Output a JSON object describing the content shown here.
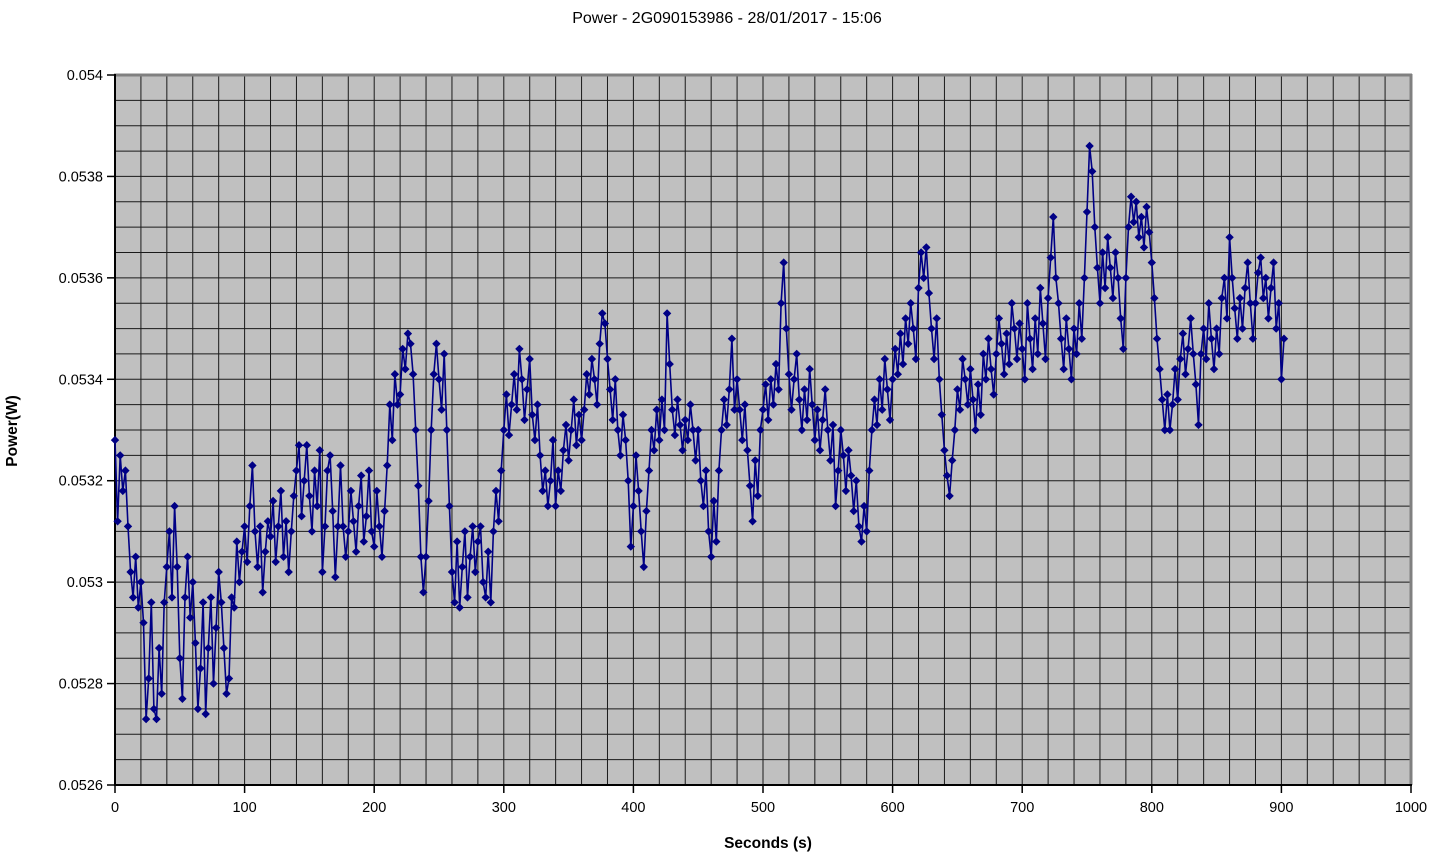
{
  "window": {
    "title": "Power - 2G090153986 - 28/01/2017 - 15:06"
  },
  "colors": {
    "page_bg": "#ffffff",
    "plot_bg": "#c0c0c0",
    "grid": "#1a1a1a",
    "border": "#808080",
    "axis": "#000000",
    "text": "#000000",
    "series": "#000085"
  },
  "chart_data": {
    "type": "line",
    "title": "Power - 2G090153986 - 28/01/2017 - 15:06",
    "xlabel": "Seconds (s)",
    "ylabel": "Power(W)",
    "xlim": [
      0,
      1000
    ],
    "ylim": [
      0.0526,
      0.054
    ],
    "grid": "minor-both",
    "legend": "none",
    "marker": "diamond",
    "x_minor_step": 20,
    "y_minor_step": 5e-05,
    "x_tick_values": [
      0,
      100,
      200,
      300,
      400,
      500,
      600,
      700,
      800,
      900,
      1000
    ],
    "x_tick_labels": [
      "0",
      "100",
      "200",
      "300",
      "400",
      "500",
      "600",
      "700",
      "800",
      "900",
      "1000"
    ],
    "y_tick_values": [
      0.0526,
      0.0528,
      0.053,
      0.0532,
      0.0534,
      0.0536,
      0.0538,
      0.054
    ],
    "y_tick_labels": [
      "0.0526",
      "0.0528",
      "0.053",
      "0.0532",
      "0.0534",
      "0.0536",
      "0.0538",
      "0.054"
    ],
    "series": [
      {
        "name": "Power",
        "x_start": 0,
        "x_step": 2,
        "values": [
          0.05328,
          0.05312,
          0.05325,
          0.05318,
          0.05322,
          0.05311,
          0.05302,
          0.05297,
          0.05305,
          0.05295,
          0.053,
          0.05292,
          0.05273,
          0.05281,
          0.05296,
          0.05275,
          0.05273,
          0.05287,
          0.05278,
          0.05296,
          0.05303,
          0.0531,
          0.05297,
          0.05315,
          0.05303,
          0.05285,
          0.05277,
          0.05297,
          0.05305,
          0.05293,
          0.053,
          0.05288,
          0.05275,
          0.05283,
          0.05296,
          0.05274,
          0.05287,
          0.05297,
          0.0528,
          0.05291,
          0.05302,
          0.05296,
          0.05287,
          0.05278,
          0.05281,
          0.05297,
          0.05295,
          0.05308,
          0.053,
          0.05306,
          0.05311,
          0.05304,
          0.05315,
          0.05323,
          0.0531,
          0.05303,
          0.05311,
          0.05298,
          0.05306,
          0.05312,
          0.05309,
          0.05316,
          0.05304,
          0.05311,
          0.05318,
          0.05305,
          0.05312,
          0.05302,
          0.0531,
          0.05317,
          0.05322,
          0.05327,
          0.05313,
          0.0532,
          0.05327,
          0.05317,
          0.0531,
          0.05322,
          0.05315,
          0.05326,
          0.05302,
          0.05311,
          0.05322,
          0.05325,
          0.05314,
          0.05301,
          0.05311,
          0.05323,
          0.05311,
          0.05305,
          0.0531,
          0.05318,
          0.05312,
          0.05306,
          0.05315,
          0.05321,
          0.05308,
          0.05313,
          0.05322,
          0.0531,
          0.05307,
          0.05318,
          0.05311,
          0.05305,
          0.05314,
          0.05323,
          0.05335,
          0.05328,
          0.05341,
          0.05335,
          0.05337,
          0.05346,
          0.05342,
          0.05349,
          0.05347,
          0.05341,
          0.0533,
          0.05319,
          0.05305,
          0.05298,
          0.05305,
          0.05316,
          0.0533,
          0.05341,
          0.05347,
          0.0534,
          0.05334,
          0.05345,
          0.0533,
          0.05315,
          0.05302,
          0.05296,
          0.05308,
          0.05295,
          0.05303,
          0.0531,
          0.05297,
          0.05305,
          0.05311,
          0.05302,
          0.05308,
          0.05311,
          0.053,
          0.05297,
          0.05306,
          0.05296,
          0.0531,
          0.05318,
          0.05312,
          0.05322,
          0.0533,
          0.05337,
          0.05329,
          0.05335,
          0.05341,
          0.05334,
          0.05346,
          0.0534,
          0.05332,
          0.05338,
          0.05344,
          0.05333,
          0.05328,
          0.05335,
          0.05325,
          0.05318,
          0.05322,
          0.05315,
          0.0532,
          0.05328,
          0.05315,
          0.05322,
          0.05318,
          0.05326,
          0.05331,
          0.05324,
          0.0533,
          0.05336,
          0.05327,
          0.05333,
          0.05328,
          0.05334,
          0.05341,
          0.05337,
          0.05344,
          0.0534,
          0.05335,
          0.05347,
          0.05353,
          0.05351,
          0.05344,
          0.05338,
          0.05332,
          0.0534,
          0.0533,
          0.05325,
          0.05333,
          0.05328,
          0.0532,
          0.05307,
          0.05315,
          0.05325,
          0.05318,
          0.0531,
          0.05303,
          0.05314,
          0.05322,
          0.0533,
          0.05326,
          0.05334,
          0.05328,
          0.05336,
          0.0533,
          0.05353,
          0.05343,
          0.05334,
          0.05329,
          0.05336,
          0.05331,
          0.05326,
          0.05332,
          0.05328,
          0.05335,
          0.0533,
          0.05324,
          0.0533,
          0.0532,
          0.05315,
          0.05322,
          0.0531,
          0.05305,
          0.05316,
          0.05308,
          0.05322,
          0.0533,
          0.05336,
          0.05331,
          0.05338,
          0.05348,
          0.05334,
          0.0534,
          0.05334,
          0.05328,
          0.05335,
          0.05326,
          0.05319,
          0.05312,
          0.05324,
          0.05317,
          0.0533,
          0.05334,
          0.05339,
          0.05332,
          0.0534,
          0.05335,
          0.05343,
          0.05338,
          0.05355,
          0.05363,
          0.0535,
          0.05341,
          0.05334,
          0.0534,
          0.05345,
          0.05336,
          0.0533,
          0.05338,
          0.05332,
          0.05342,
          0.05335,
          0.05328,
          0.05334,
          0.05326,
          0.05332,
          0.05338,
          0.0533,
          0.05324,
          0.05331,
          0.05315,
          0.05322,
          0.0533,
          0.05325,
          0.05318,
          0.05326,
          0.05321,
          0.05314,
          0.0532,
          0.05311,
          0.05308,
          0.05315,
          0.0531,
          0.05322,
          0.0533,
          0.05336,
          0.05331,
          0.0534,
          0.05334,
          0.05344,
          0.05338,
          0.05332,
          0.0534,
          0.05346,
          0.05341,
          0.05349,
          0.05343,
          0.05352,
          0.05347,
          0.05355,
          0.0535,
          0.05344,
          0.05358,
          0.05365,
          0.0536,
          0.05366,
          0.05357,
          0.0535,
          0.05344,
          0.05352,
          0.0534,
          0.05333,
          0.05326,
          0.05321,
          0.05317,
          0.05324,
          0.0533,
          0.05338,
          0.05334,
          0.05344,
          0.0534,
          0.05335,
          0.05342,
          0.05336,
          0.0533,
          0.05339,
          0.05333,
          0.05345,
          0.0534,
          0.05348,
          0.05342,
          0.05337,
          0.05345,
          0.05352,
          0.05347,
          0.05341,
          0.05349,
          0.05343,
          0.05355,
          0.0535,
          0.05344,
          0.05351,
          0.05346,
          0.0534,
          0.05355,
          0.05348,
          0.05342,
          0.05352,
          0.05345,
          0.05358,
          0.05351,
          0.05344,
          0.05356,
          0.05364,
          0.05372,
          0.0536,
          0.05355,
          0.05348,
          0.05342,
          0.05352,
          0.05346,
          0.0534,
          0.0535,
          0.05345,
          0.05355,
          0.05348,
          0.0536,
          0.05373,
          0.05386,
          0.05381,
          0.0537,
          0.05362,
          0.05355,
          0.05365,
          0.05358,
          0.05368,
          0.05362,
          0.05356,
          0.05365,
          0.0536,
          0.05352,
          0.05346,
          0.0536,
          0.0537,
          0.05376,
          0.05371,
          0.05375,
          0.05368,
          0.05372,
          0.05366,
          0.05374,
          0.05369,
          0.05363,
          0.05356,
          0.05348,
          0.05342,
          0.05336,
          0.0533,
          0.05337,
          0.0533,
          0.05335,
          0.05342,
          0.05336,
          0.05344,
          0.05349,
          0.05341,
          0.05346,
          0.05352,
          0.05345,
          0.05339,
          0.05331,
          0.05345,
          0.0535,
          0.05344,
          0.05355,
          0.05348,
          0.05342,
          0.0535,
          0.05345,
          0.05356,
          0.0536,
          0.05352,
          0.05368,
          0.0536,
          0.05354,
          0.05348,
          0.05356,
          0.0535,
          0.05358,
          0.05363,
          0.05355,
          0.05348,
          0.05355,
          0.05361,
          0.05364,
          0.05356,
          0.0536,
          0.05352,
          0.05358,
          0.05363,
          0.0535,
          0.05355,
          0.0534,
          0.05348
        ]
      }
    ]
  }
}
